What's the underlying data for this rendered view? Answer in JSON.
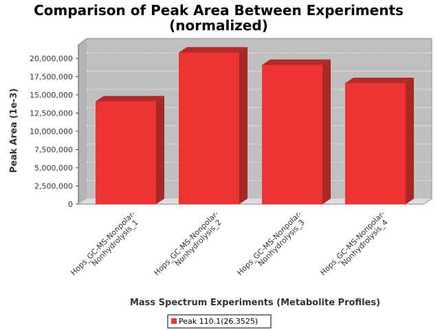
{
  "chart_data": {
    "type": "bar",
    "title_line1": "Comparison of Peak Area Between Experiments",
    "title_line2": "(normalized)",
    "xlabel": "Mass Spectrum Experiments (Metabolite Profiles)",
    "ylabel": "Peak Area (1e-3)",
    "categories": [
      [
        "Hops_GC-MS-Nonpolar-",
        "Nonhydrolysis_1"
      ],
      [
        "Hops_GC-MS-Nonpolar-",
        "Nonhydrolysis_2"
      ],
      [
        "Hops_GC-MS-Nonpolar-",
        "Nonhydrolysis_3"
      ],
      [
        "Hops_GC-MS-Nonpolar-",
        "Nonhydrolysis_4"
      ]
    ],
    "series": [
      {
        "name": "Peak 110.1(26.3525)",
        "values": [
          14100000,
          20800000,
          19100000,
          16600000
        ],
        "color": "#ee3333"
      }
    ],
    "ylim": [
      0,
      22000000
    ],
    "yticks": [
      0,
      2500000,
      5000000,
      7500000,
      10000000,
      12500000,
      15000000,
      17500000,
      20000000
    ],
    "ytick_labels": [
      "0",
      "2,500,000",
      "5,000,000",
      "7,500,000",
      "10,000,000",
      "12,500,000",
      "15,000,000",
      "17,500,000",
      "20,000,000"
    ],
    "grid": true,
    "legend_position": "bottom-center",
    "plot_background": "#c0c0c0"
  }
}
